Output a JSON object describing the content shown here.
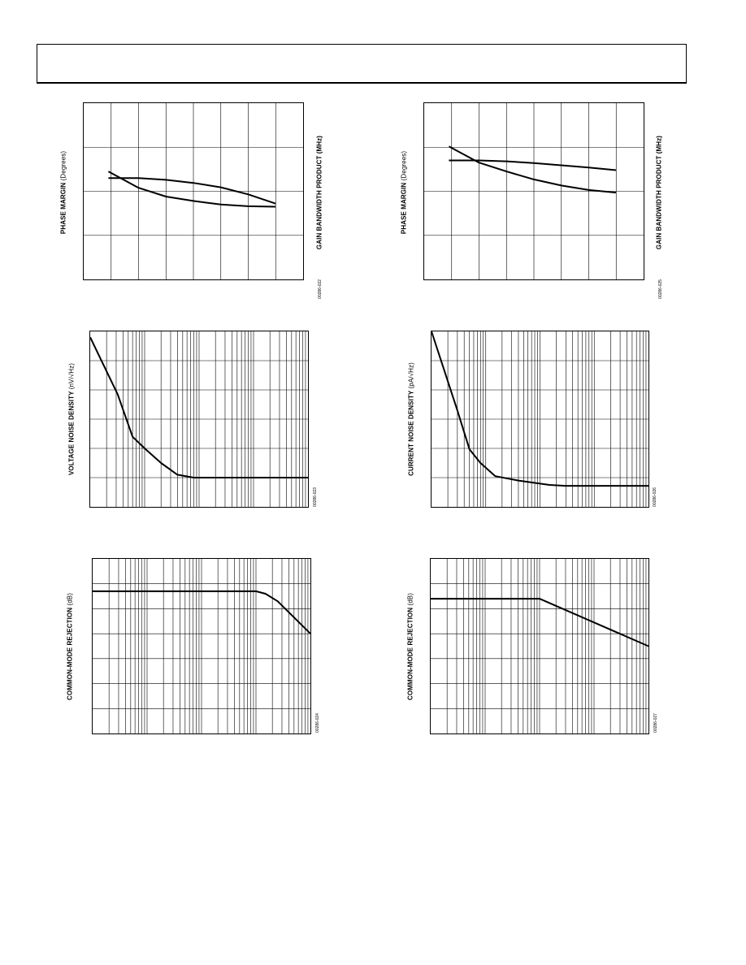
{
  "header": {
    "text": ""
  },
  "chart_data": [
    {
      "type": "line",
      "ylabel": "PHASE MARGIN",
      "ylabel_unit": "(Degrees)",
      "y2label": "GAIN BANDWIDTH PRODUCT (MHz)",
      "fig_id": "00286-022",
      "x_grid_divisions": 8,
      "y_grid_divisions": 4,
      "x_range": [
        0,
        8
      ],
      "y_range": [
        0,
        4
      ],
      "series": [
        {
          "values": [
            [
              0.9,
              2.45
            ],
            [
              2,
              2.08
            ],
            [
              3,
              1.88
            ],
            [
              4,
              1.78
            ],
            [
              5,
              1.7
            ],
            [
              6,
              1.66
            ],
            [
              7,
              1.65
            ]
          ]
        },
        {
          "values": [
            [
              0.9,
              2.3
            ],
            [
              2,
              2.3
            ],
            [
              3,
              2.26
            ],
            [
              4,
              2.19
            ],
            [
              5,
              2.09
            ],
            [
              6,
              1.93
            ],
            [
              7,
              1.72
            ]
          ]
        }
      ]
    },
    {
      "type": "line",
      "ylabel": "PHASE MARGIN",
      "ylabel_unit": "(Degrees)",
      "y2label": "GAIN BANDWIDTH PRODUCT (MHz)",
      "fig_id": "00286-025",
      "x_grid_divisions": 8,
      "y_grid_divisions": 4,
      "x_range": [
        0,
        8
      ],
      "y_range": [
        0,
        4
      ],
      "series": [
        {
          "values": [
            [
              0.9,
              3.02
            ],
            [
              2,
              2.65
            ],
            [
              3,
              2.45
            ],
            [
              4,
              2.27
            ],
            [
              5,
              2.13
            ],
            [
              6,
              2.03
            ],
            [
              7,
              1.97
            ]
          ]
        },
        {
          "values": [
            [
              0.9,
              2.7
            ],
            [
              2,
              2.7
            ],
            [
              3,
              2.68
            ],
            [
              4,
              2.64
            ],
            [
              5,
              2.59
            ],
            [
              6,
              2.54
            ],
            [
              7,
              2.48
            ]
          ]
        }
      ]
    },
    {
      "type": "line",
      "x_scale": "log",
      "ylabel": "VOLTAGE NOISE DENSITY",
      "ylabel_unit": "(nV/√Hz)",
      "fig_id": "00286-023",
      "decades": 4,
      "y_grid_divisions": 6,
      "y_range": [
        0,
        6
      ],
      "series": [
        {
          "values": [
            [
              1,
              5.8
            ],
            [
              3.2,
              3.85
            ],
            [
              6,
              2.4
            ],
            [
              10,
              2.0
            ],
            [
              20,
              1.5
            ],
            [
              40,
              1.1
            ],
            [
              80,
              1.0
            ],
            [
              300,
              1.0
            ],
            [
              10000,
              1.0
            ]
          ]
        }
      ]
    },
    {
      "type": "line",
      "x_scale": "log",
      "ylabel": "CURRENT NOISE DENSITY",
      "ylabel_unit": "(pA/√Hz)",
      "fig_id": "00286-026",
      "decades": 4,
      "y_grid_divisions": 6,
      "y_range": [
        0,
        6
      ],
      "series": [
        {
          "values": [
            [
              1,
              6.0
            ],
            [
              3,
              3.3
            ],
            [
              5,
              1.97
            ],
            [
              8,
              1.5
            ],
            [
              15,
              1.05
            ],
            [
              40,
              0.9
            ],
            [
              150,
              0.75
            ],
            [
              300,
              0.72
            ],
            [
              10000,
              0.72
            ]
          ]
        }
      ]
    },
    {
      "type": "line",
      "x_scale": "log",
      "ylabel": "COMMON-MODE REJECTION",
      "ylabel_unit": "(dB)",
      "fig_id": "00286-024",
      "decades": 4,
      "y_grid_divisions": 7,
      "y_range": [
        0,
        7
      ],
      "series": [
        {
          "values": [
            [
              1,
              5.7
            ],
            [
              1000,
              5.7
            ],
            [
              1500,
              5.6
            ],
            [
              2500,
              5.3
            ],
            [
              10000,
              4.0
            ]
          ]
        }
      ]
    },
    {
      "type": "line",
      "x_scale": "log",
      "ylabel": "COMMON-MODE REJECTION",
      "ylabel_unit": "(dB)",
      "fig_id": "00286-027",
      "decades": 4,
      "y_grid_divisions": 7,
      "y_range": [
        0,
        7
      ],
      "series": [
        {
          "values": [
            [
              1,
              5.4
            ],
            [
              100,
              5.4
            ],
            [
              10000,
              3.5
            ]
          ]
        }
      ]
    }
  ]
}
